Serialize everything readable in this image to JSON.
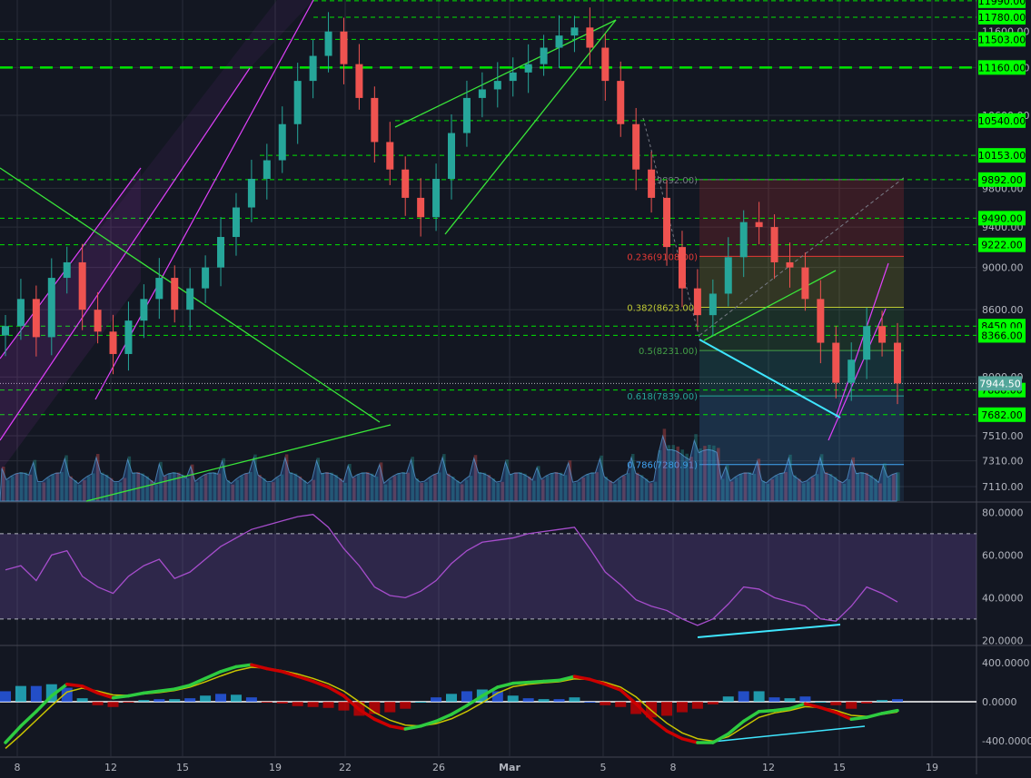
{
  "chart_data": [
    {
      "type": "candlestick",
      "title": "",
      "x_ticks": [
        "8",
        "12",
        "15",
        "19",
        "22",
        "26",
        "Mar",
        "5",
        "8",
        "12",
        "15",
        "19"
      ],
      "price_axis_ticks": [
        "11600.00",
        "11160.00",
        "10600.00",
        "9800.00",
        "9400.00",
        "9000.00",
        "8600.00",
        "8000.00",
        "7510.00",
        "7310.00",
        "7110.00"
      ],
      "ylim": [
        7000,
        12000
      ],
      "log_scale": true,
      "grid": true,
      "horizontal_levels": [
        {
          "label": "11990.00",
          "value": 11990,
          "color": "#00e600"
        },
        {
          "label": "11780.00",
          "value": 11780,
          "color": "#00e600"
        },
        {
          "label": "11503.00",
          "value": 11503,
          "color": "#00e600"
        },
        {
          "label": "11160.00",
          "value": 11160,
          "color": "#00e600"
        },
        {
          "label": "10540.00",
          "value": 10540,
          "color": "#00e600"
        },
        {
          "label": "10153.00",
          "value": 10153,
          "color": "#00e600"
        },
        {
          "label": "9892.00",
          "value": 9892,
          "color": "#00e600"
        },
        {
          "label": "9490.00",
          "value": 9490,
          "color": "#00e600"
        },
        {
          "label": "9222.00",
          "value": 9222,
          "color": "#00e600"
        },
        {
          "label": "8450.00",
          "value": 8450,
          "color": "#00e600"
        },
        {
          "label": "8366.00",
          "value": 8366,
          "color": "#00e600"
        },
        {
          "label": "7888.00",
          "value": 7888,
          "color": "#00e600"
        },
        {
          "label": "7682.00",
          "value": 7682,
          "color": "#00e600"
        }
      ],
      "last_price": {
        "label": "7944.50",
        "value": 7944.5
      },
      "fibonacci": [
        {
          "label": "0(9892.00)",
          "value": 9892,
          "color": "#787b86"
        },
        {
          "label": "0.236(9108.00)",
          "value": 9108,
          "color": "#e53935"
        },
        {
          "label": "0.382(8623.00)",
          "value": 8623,
          "color": "#c0ca33"
        },
        {
          "label": "0.5(8231.00)",
          "value": 8231,
          "color": "#43a047"
        },
        {
          "label": "0.618(7839.00)",
          "value": 7839,
          "color": "#26a69a"
        },
        {
          "label": "0.786(7280.91)",
          "value": 7280.91,
          "color": "#42a5f5"
        }
      ],
      "closes": [
        8450,
        8700,
        8350,
        8900,
        9050,
        8600,
        8400,
        8200,
        8500,
        8700,
        8900,
        8600,
        8800,
        9000,
        9300,
        9600,
        9900,
        10100,
        10500,
        11000,
        11300,
        11600,
        11200,
        10800,
        10300,
        10000,
        9700,
        9500,
        9900,
        10400,
        10800,
        10900,
        11000,
        11100,
        11200,
        11400,
        11550,
        11650,
        11400,
        11000,
        10500,
        10000,
        9700,
        9200,
        8800,
        8550,
        8750,
        9100,
        9450,
        9400,
        9050,
        9000,
        8700,
        8300,
        7950,
        8150,
        8450,
        8300,
        7944.5
      ]
    },
    {
      "type": "line",
      "title": "",
      "axis_ticks": [
        "80.0000",
        "60.0000",
        "40.0000",
        "20.0000"
      ],
      "ylim": [
        18,
        84
      ],
      "bands": [
        70,
        30
      ],
      "series": [
        {
          "values": [
            53,
            55,
            48,
            60,
            62,
            50,
            45,
            42,
            50,
            55,
            58,
            49,
            52,
            58,
            64,
            68,
            72,
            74,
            76,
            78,
            79,
            73,
            63,
            55,
            45,
            41,
            40,
            43,
            48,
            56,
            62,
            66,
            67,
            68,
            70,
            71,
            72,
            73,
            63,
            52,
            46,
            39,
            36,
            34,
            30,
            27,
            30,
            37,
            45,
            44,
            40,
            38,
            36,
            30,
            29,
            36,
            45,
            42,
            38
          ]
        }
      ]
    },
    {
      "type": "line",
      "title": "",
      "axis_ticks": [
        "400.0000",
        "0.0000",
        "-400.0000"
      ],
      "ylim": [
        -560,
        560
      ],
      "series": [
        {
          "values": [
            -420,
            -250,
            -100,
            60,
            180,
            160,
            90,
            40,
            60,
            90,
            110,
            130,
            170,
            240,
            310,
            360,
            380,
            340,
            310,
            260,
            210,
            150,
            60,
            -80,
            -180,
            -250,
            -280,
            -250,
            -200,
            -130,
            -40,
            60,
            150,
            190,
            200,
            210,
            220,
            260,
            230,
            180,
            120,
            -20,
            -180,
            -300,
            -380,
            -420,
            -420,
            -330,
            -200,
            -100,
            -90,
            -70,
            -20,
            -60,
            -110,
            -180,
            -160,
            -120,
            -90
          ]
        },
        {
          "values": [
            -480,
            -340,
            -190,
            -40,
            100,
            140,
            110,
            70,
            65,
            80,
            95,
            115,
            150,
            205,
            265,
            320,
            355,
            345,
            320,
            285,
            240,
            185,
            110,
            0,
            -110,
            -190,
            -240,
            -250,
            -225,
            -175,
            -100,
            -10,
            90,
            155,
            180,
            195,
            205,
            235,
            230,
            200,
            150,
            50,
            -90,
            -220,
            -320,
            -380,
            -405,
            -360,
            -260,
            -160,
            -115,
            -90,
            -50,
            -60,
            -90,
            -140,
            -150,
            -130,
            -105
          ]
        }
      ]
    }
  ]
}
